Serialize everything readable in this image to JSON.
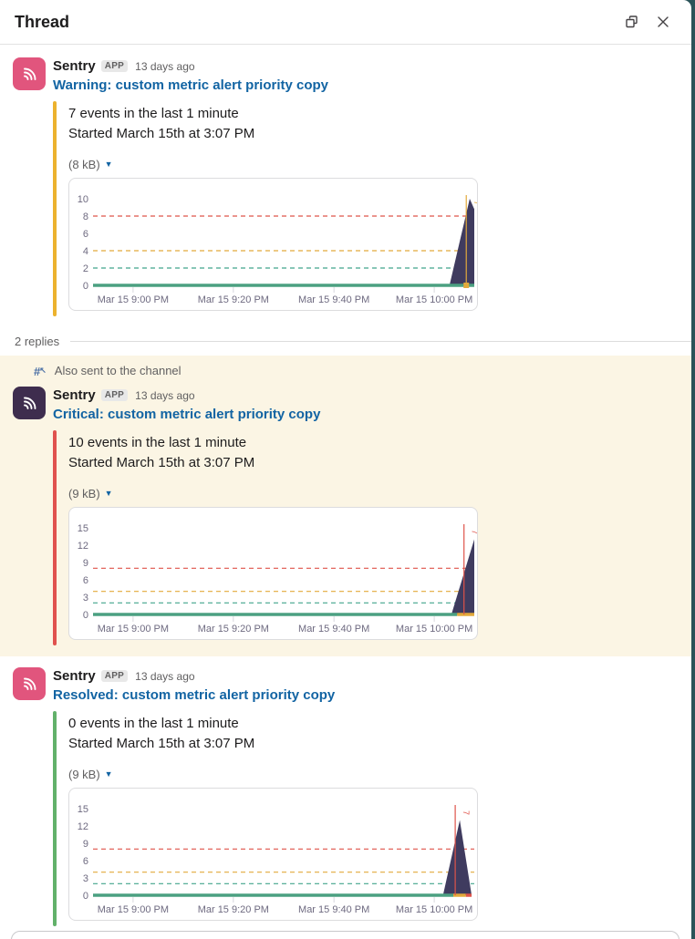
{
  "window": {
    "title": "Thread"
  },
  "header_icons": {
    "popout": "popout-icon",
    "close": "close-icon"
  },
  "thread_meta": {
    "replies_label": "2 replies",
    "also_sent_label": "Also sent to the channel"
  },
  "colors": {
    "highlight_bg": "#fbf5e4",
    "link_blue": "#1264a3",
    "window_edge_teal": "#2b5359"
  },
  "messages": [
    {
      "sender": "Sentry",
      "badge": "APP",
      "timestamp": "13 days ago",
      "title": "Warning: custom metric alert priority copy",
      "accent": "#ecb22e",
      "avatar_bg": "#e1557d",
      "body_line1": "7 events in the last 1 minute",
      "body_line2": "Started March 15th at 3:07 PM",
      "file_size": "(8 kB)",
      "chart": {
        "type": "area",
        "yticks": [
          0,
          2,
          4,
          6,
          8,
          10
        ],
        "x_labels": [
          "Mar 15 9:00 PM",
          "Mar 15 9:20 PM",
          "Mar 15 9:40 PM",
          "Mar 15 10:00 PM"
        ],
        "thresholds": [
          {
            "value": 8,
            "color": "#df5349"
          },
          {
            "value": 4,
            "color": "#e2a93b"
          },
          {
            "value": 2,
            "color": "#42a58c"
          }
        ],
        "series_color": "#3f3b5f",
        "area_points": [
          [
            0.935,
            0
          ],
          [
            0.988,
            10
          ],
          [
            1,
            8.8
          ]
        ],
        "area_clipped_right": true,
        "baseline_segments": [
          {
            "from": 0,
            "to": 1,
            "color": "#4ba081"
          }
        ],
        "vline": {
          "x": 0.979,
          "color": "#e2a93b",
          "glyph": "7"
        },
        "base_marker": {
          "x": 0.979,
          "color": "#e2a93b"
        }
      }
    },
    {
      "sender": "Sentry",
      "badge": "APP",
      "timestamp": "13 days ago",
      "title": "Critical: custom metric alert priority copy",
      "accent": "#e0524e",
      "avatar_bg": "#3e2d4e",
      "body_line1": "10 events in the last 1 minute",
      "body_line2": "Started March 15th at 3:07 PM",
      "file_size": "(9 kB)",
      "chart": {
        "type": "area",
        "yticks": [
          0,
          3,
          6,
          9,
          12,
          15
        ],
        "x_labels": [
          "Mar 15 9:00 PM",
          "Mar 15 9:20 PM",
          "Mar 15 9:40 PM",
          "Mar 15 10:00 PM"
        ],
        "thresholds": [
          {
            "value": 8,
            "color": "#df5349"
          },
          {
            "value": 4,
            "color": "#e2a93b"
          },
          {
            "value": 2,
            "color": "#42a58c"
          }
        ],
        "series_color": "#3f3b5f",
        "area_points": [
          [
            0.94,
            0
          ],
          [
            1,
            13
          ]
        ],
        "area_clipped_right": true,
        "baseline_segments": [
          {
            "from": 0,
            "to": 0.955,
            "color": "#4ba081"
          },
          {
            "from": 0.955,
            "to": 1,
            "color": "#e2a93b"
          }
        ],
        "vline": {
          "x": 0.973,
          "color": "#df5349",
          "glyph": "7"
        }
      }
    },
    {
      "sender": "Sentry",
      "badge": "APP",
      "timestamp": "13 days ago",
      "title": "Resolved: custom metric alert priority copy",
      "accent": "#62b16a",
      "avatar_bg": "#e1557d",
      "body_line1": "0 events in the last 1 minute",
      "body_line2": "Started March 15th at 3:07 PM",
      "file_size": "(9 kB)",
      "chart": {
        "type": "area",
        "yticks": [
          0,
          3,
          6,
          9,
          12,
          15
        ],
        "x_labels": [
          "Mar 15 9:00 PM",
          "Mar 15 9:20 PM",
          "Mar 15 9:40 PM",
          "Mar 15 10:00 PM"
        ],
        "thresholds": [
          {
            "value": 8,
            "color": "#df5349"
          },
          {
            "value": 4,
            "color": "#e2a93b"
          },
          {
            "value": 2,
            "color": "#42a58c"
          }
        ],
        "series_color": "#3f3b5f",
        "area_points": [
          [
            0.918,
            0
          ],
          [
            0.962,
            13
          ],
          [
            0.993,
            0
          ]
        ],
        "area_clipped_right": false,
        "baseline_segments": [
          {
            "from": 0,
            "to": 0.945,
            "color": "#4ba081"
          },
          {
            "from": 0.945,
            "to": 0.978,
            "color": "#e2a93b"
          },
          {
            "from": 0.978,
            "to": 0.993,
            "color": "#df5349"
          }
        ],
        "vline": {
          "x": 0.95,
          "color": "#df5349",
          "glyph": "7"
        }
      }
    }
  ]
}
